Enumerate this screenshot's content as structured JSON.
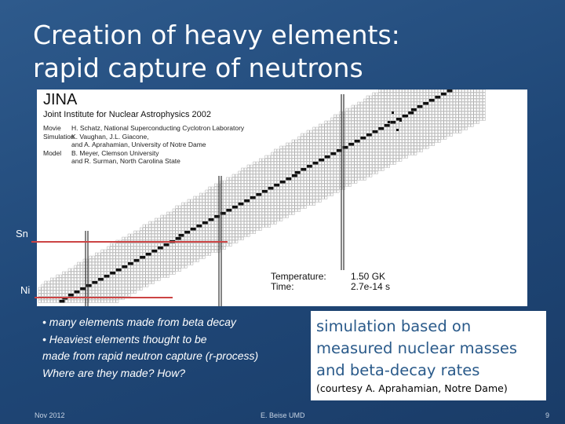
{
  "slide": {
    "title_line1": "Creation of heavy elements:",
    "title_line2": "rapid capture of neutrons"
  },
  "figure": {
    "logo": "JINA",
    "subtitle": "Joint Institute for Nuclear Astrophysics 2002",
    "credits": [
      {
        "key": "Movie",
        "value": "H. Schatz, National Superconducting Cyclotron Laboratory"
      },
      {
        "key": "Simulation",
        "value": "K. Vaughan, J.L. Giacone,"
      },
      {
        "key": "",
        "value": "and A. Aprahamian, University of Notre Dame"
      },
      {
        "key": "Model",
        "value": "B. Meyer, Clemson University"
      },
      {
        "key": "",
        "value": "and R. Surman, North Carolina State"
      }
    ],
    "temperature_label": "Temperature:",
    "temperature_value": "1.50 GK",
    "time_label": "Time:",
    "time_value": "2.7e-14 s"
  },
  "labels": {
    "sn": "Sn",
    "ni": "Ni"
  },
  "bullets": [
    "• many elements made from beta decay",
    "• Heaviest elements thought to be",
    "made from rapid neutron capture (r-process)",
    "Where are they made? How?"
  ],
  "note": {
    "line1": "simulation based on",
    "line2": "measured nuclear masses",
    "line3": "and beta-decay rates",
    "credit": "(courtesy A. Aprahamian, Notre Dame)"
  },
  "footer": {
    "date": "Nov 2012",
    "author": "E. Beise UMD",
    "page": "9"
  },
  "colors": {
    "accent": "#c44444",
    "note_text": "#2a5a8a",
    "background": "#1f4777"
  }
}
